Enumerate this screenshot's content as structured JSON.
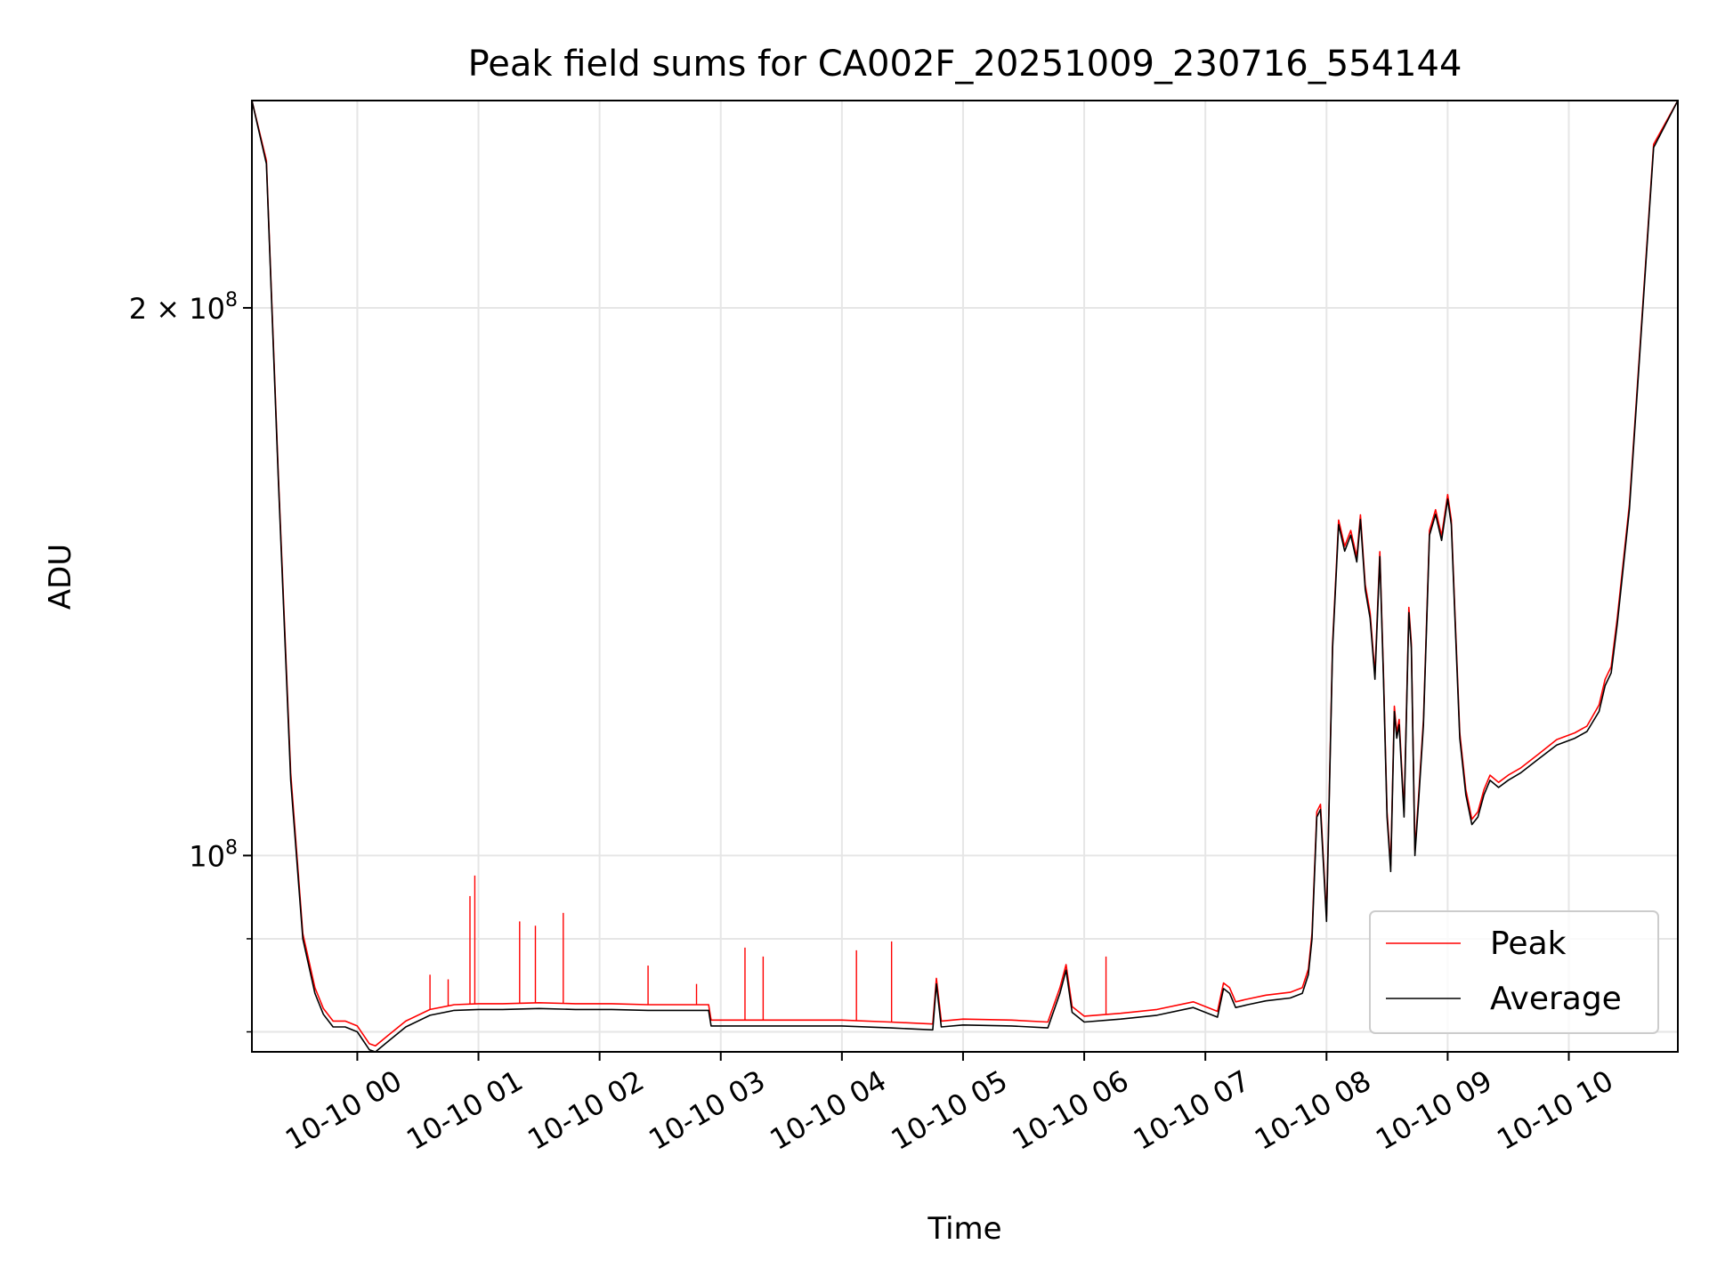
{
  "chart_data": {
    "type": "line",
    "title": "Peak field sums for CA002F_20251009_230716_554144",
    "xlabel": "Time",
    "ylabel": "ADU",
    "yscale": "log",
    "ylim": [
      78000000,
      260000000
    ],
    "xlim": [
      -0.87,
      10.9
    ],
    "grid": true,
    "legend_position": "lower-right",
    "x_ticks": [
      {
        "value": 0,
        "label": "10-10 00"
      },
      {
        "value": 1,
        "label": "10-10 01"
      },
      {
        "value": 2,
        "label": "10-10 02"
      },
      {
        "value": 3,
        "label": "10-10 03"
      },
      {
        "value": 4,
        "label": "10-10 04"
      },
      {
        "value": 5,
        "label": "10-10 05"
      },
      {
        "value": 6,
        "label": "10-10 06"
      },
      {
        "value": 7,
        "label": "10-10 07"
      },
      {
        "value": 8,
        "label": "10-10 08"
      },
      {
        "value": 9,
        "label": "10-10 09"
      },
      {
        "value": 10,
        "label": "10-10 10"
      }
    ],
    "y_ticks_major": [
      {
        "value": 100000000,
        "base": "10",
        "exp": "8",
        "mantissa": ""
      },
      {
        "value": 200000000,
        "base": "10",
        "exp": "8",
        "mantissa": "2 × "
      }
    ],
    "y_ticks_minor": [
      80000000,
      90000000
    ],
    "series": [
      {
        "name": "Average",
        "color": "#000000",
        "x": [
          -0.87,
          -0.75,
          -0.65,
          -0.55,
          -0.45,
          -0.35,
          -0.28,
          -0.2,
          -0.1,
          0.0,
          0.1,
          0.15,
          0.25,
          0.4,
          0.6,
          0.8,
          1.0,
          1.2,
          1.5,
          1.8,
          2.1,
          2.4,
          2.7,
          2.9,
          2.92,
          3.2,
          3.6,
          4.0,
          4.4,
          4.75,
          4.78,
          4.82,
          5.0,
          5.4,
          5.7,
          5.8,
          5.85,
          5.9,
          6.0,
          6.3,
          6.6,
          6.9,
          7.1,
          7.15,
          7.2,
          7.25,
          7.35,
          7.5,
          7.7,
          7.8,
          7.85,
          7.88,
          7.92,
          7.95,
          8.0,
          8.05,
          8.1,
          8.15,
          8.2,
          8.25,
          8.28,
          8.32,
          8.36,
          8.4,
          8.44,
          8.47,
          8.5,
          8.53,
          8.56,
          8.58,
          8.6,
          8.64,
          8.68,
          8.7,
          8.73,
          8.76,
          8.8,
          8.85,
          8.9,
          8.95,
          9.0,
          9.03,
          9.06,
          9.1,
          9.15,
          9.2,
          9.25,
          9.3,
          9.35,
          9.42,
          9.5,
          9.6,
          9.75,
          9.9,
          10.05,
          10.15,
          10.25,
          10.3,
          10.35,
          10.4,
          10.5,
          10.6,
          10.7,
          10.9
        ],
        "values": [
          260000000,
          240000000,
          160000000,
          110000000,
          90000000,
          84000000,
          81800000,
          80500000,
          80500000,
          80000000,
          78200000,
          78000000,
          79000000,
          80500000,
          81700000,
          82200000,
          82300000,
          82300000,
          82400000,
          82300000,
          82300000,
          82200000,
          82200000,
          82200000,
          80600000,
          80600000,
          80600000,
          80600000,
          80400000,
          80200000,
          85000000,
          80500000,
          80700000,
          80600000,
          80400000,
          84000000,
          86500000,
          82000000,
          81000000,
          81300000,
          81700000,
          82500000,
          81500000,
          84500000,
          84000000,
          82500000,
          82800000,
          83200000,
          83500000,
          84000000,
          86000000,
          90000000,
          105000000,
          106000000,
          92000000,
          130000000,
          152000000,
          147000000,
          150000000,
          145000000,
          153000000,
          140000000,
          135000000,
          125000000,
          146000000,
          125000000,
          105000000,
          98000000,
          120000000,
          116000000,
          118000000,
          105000000,
          136000000,
          130000000,
          100000000,
          107000000,
          118000000,
          150000000,
          154000000,
          149000000,
          157000000,
          152000000,
          135000000,
          116000000,
          108000000,
          104000000,
          105000000,
          108000000,
          110000000,
          109000000,
          110000000,
          111000000,
          113000000,
          115000000,
          116000000,
          117000000,
          120000000,
          124000000,
          126000000,
          134000000,
          155000000,
          195000000,
          245000000,
          260000000
        ]
      },
      {
        "name": "Peak",
        "color": "#ff0000",
        "x": [
          -0.87,
          -0.75,
          -0.65,
          -0.55,
          -0.45,
          -0.35,
          -0.28,
          -0.2,
          -0.1,
          0.0,
          0.1,
          0.15,
          0.25,
          0.4,
          0.6,
          0.8,
          1.0,
          1.2,
          1.5,
          1.8,
          2.1,
          2.4,
          2.7,
          2.9,
          2.92,
          3.2,
          3.6,
          4.0,
          4.4,
          4.75,
          4.78,
          4.82,
          5.0,
          5.4,
          5.7,
          5.8,
          5.85,
          5.9,
          6.0,
          6.3,
          6.6,
          6.9,
          7.1,
          7.15,
          7.2,
          7.25,
          7.35,
          7.5,
          7.7,
          7.8,
          7.85,
          7.88,
          7.92,
          7.95,
          8.0,
          8.05,
          8.1,
          8.15,
          8.2,
          8.25,
          8.28,
          8.32,
          8.36,
          8.4,
          8.44,
          8.47,
          8.5,
          8.53,
          8.56,
          8.58,
          8.6,
          8.64,
          8.68,
          8.7,
          8.73,
          8.76,
          8.8,
          8.85,
          8.9,
          8.95,
          9.0,
          9.03,
          9.06,
          9.1,
          9.15,
          9.2,
          9.25,
          9.3,
          9.35,
          9.42,
          9.5,
          9.6,
          9.75,
          9.9,
          10.05,
          10.15,
          10.25,
          10.3,
          10.35,
          10.4,
          10.5,
          10.6,
          10.7,
          10.9
        ],
        "values": [
          260000000,
          241000000,
          161000000,
          111000000,
          90600000,
          84600000,
          82400000,
          81100000,
          81100000,
          80600000,
          78800000,
          78600000,
          79600000,
          81100000,
          82300000,
          82800000,
          82900000,
          82900000,
          83000000,
          82900000,
          82900000,
          82800000,
          82800000,
          82800000,
          81200000,
          81200000,
          81200000,
          81200000,
          81000000,
          80800000,
          85600000,
          81100000,
          81300000,
          81200000,
          81000000,
          84600000,
          87100000,
          82600000,
          81600000,
          81900000,
          82300000,
          83100000,
          82100000,
          85100000,
          84600000,
          83100000,
          83400000,
          83800000,
          84100000,
          84600000,
          86600000,
          90600000,
          105700000,
          106700000,
          92600000,
          130800000,
          152900000,
          147900000,
          150900000,
          145900000,
          153900000,
          140900000,
          135900000,
          125800000,
          146900000,
          125800000,
          105700000,
          98700000,
          120800000,
          116800000,
          118800000,
          105700000,
          136900000,
          130800000,
          100700000,
          107700000,
          118800000,
          150900000,
          154900000,
          149900000,
          157900000,
          152900000,
          135900000,
          116800000,
          108700000,
          104700000,
          105700000,
          108700000,
          110700000,
          109700000,
          110700000,
          111700000,
          113700000,
          115800000,
          116800000,
          117800000,
          121000000,
          125000000,
          127000000,
          135000000,
          156000000,
          196000000,
          246000000,
          260000000
        ],
        "spikes": [
          {
            "x": 0.6,
            "value": 86000000
          },
          {
            "x": 0.75,
            "value": 85500000
          },
          {
            "x": 0.93,
            "value": 95000000
          },
          {
            "x": 0.97,
            "value": 97500000
          },
          {
            "x": 1.34,
            "value": 92000000
          },
          {
            "x": 1.47,
            "value": 91500000
          },
          {
            "x": 1.7,
            "value": 93000000
          },
          {
            "x": 2.4,
            "value": 87000000
          },
          {
            "x": 2.8,
            "value": 85000000
          },
          {
            "x": 3.2,
            "value": 89000000
          },
          {
            "x": 3.35,
            "value": 88000000
          },
          {
            "x": 4.12,
            "value": 88700000
          },
          {
            "x": 4.41,
            "value": 89700000
          },
          {
            "x": 6.18,
            "value": 88000000
          }
        ]
      }
    ],
    "legend": [
      {
        "label": "Peak",
        "color": "#ff0000"
      },
      {
        "label": "Average",
        "color": "#000000"
      }
    ]
  }
}
